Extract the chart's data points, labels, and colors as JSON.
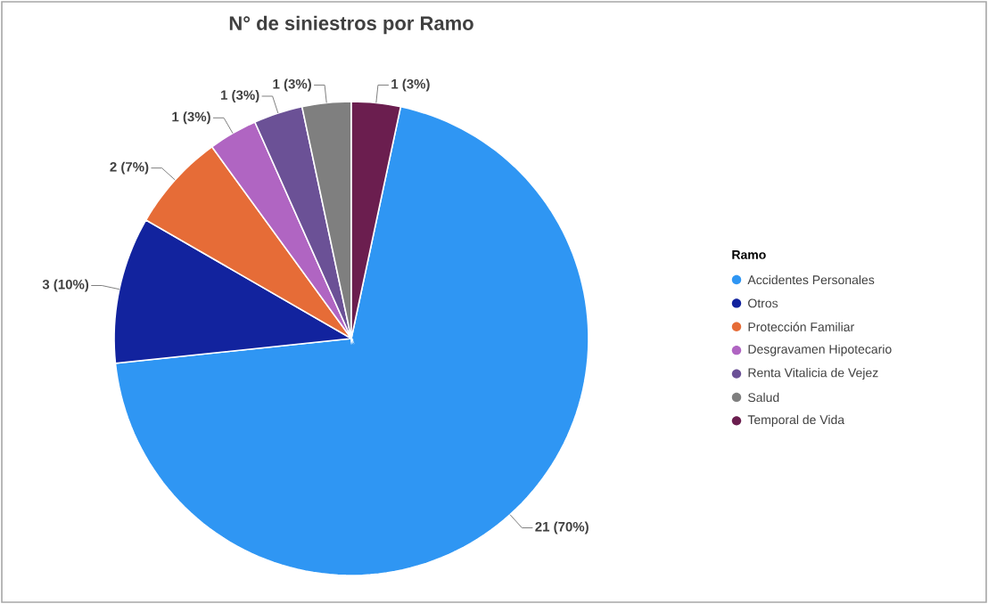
{
  "chart_data": {
    "type": "pie",
    "title": "N° de siniestros por Ramo",
    "legend_title": "Ramo",
    "legend": "right",
    "categories": [
      "Accidentes Personales",
      "Otros",
      "Protección Familiar",
      "Desgravamen Hipotecario",
      "Renta Vitalicia de Vejez",
      "Salud",
      "Temporal de Vida"
    ],
    "values": [
      21,
      3,
      2,
      1,
      1,
      1,
      1
    ],
    "value_labels": [
      "21 (70%)",
      "3 (10%)",
      "2 (7%)",
      "1 (3%)",
      "1 (3%)",
      "1 (3%)",
      "1 (3%)"
    ],
    "colors": [
      "#2f96f3",
      "#12239e",
      "#e66c37",
      "#b065c2",
      "#6b5196",
      "#7f7f7f",
      "#6b1e4f"
    ]
  }
}
